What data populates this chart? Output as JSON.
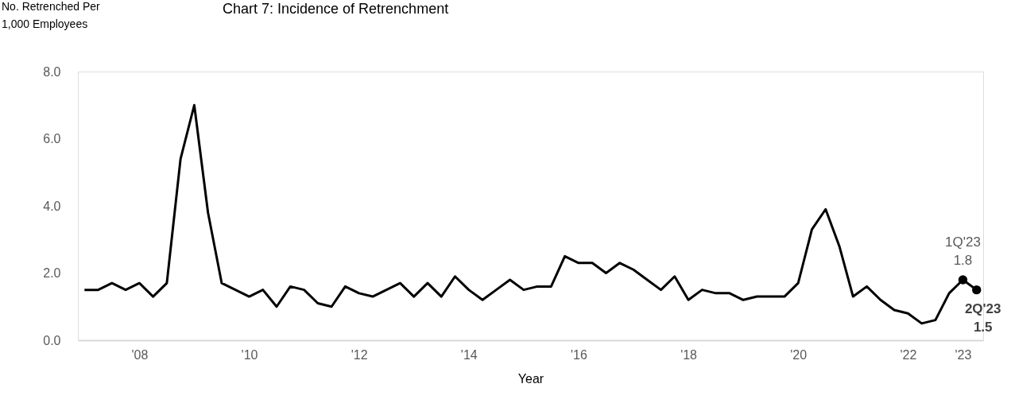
{
  "chart_data": {
    "type": "line",
    "title": "Chart 7: Incidence of Retrenchment",
    "xlabel": "Year",
    "ylabel": "No. Retrenched Per\n1,000 Employees",
    "x": [
      2007.0,
      2007.25,
      2007.5,
      2007.75,
      2008.0,
      2008.25,
      2008.5,
      2008.75,
      2009.0,
      2009.25,
      2009.5,
      2009.75,
      2010.0,
      2010.25,
      2010.5,
      2010.75,
      2011.0,
      2011.25,
      2011.5,
      2011.75,
      2012.0,
      2012.25,
      2012.5,
      2012.75,
      2013.0,
      2013.25,
      2013.5,
      2013.75,
      2014.0,
      2014.25,
      2014.5,
      2014.75,
      2015.0,
      2015.25,
      2015.5,
      2015.75,
      2016.0,
      2016.25,
      2016.5,
      2016.75,
      2017.0,
      2017.25,
      2017.5,
      2017.75,
      2018.0,
      2018.25,
      2018.5,
      2018.75,
      2019.0,
      2019.25,
      2019.5,
      2019.75,
      2020.0,
      2020.25,
      2020.5,
      2020.75,
      2021.0,
      2021.25,
      2021.5,
      2021.75,
      2022.0,
      2022.25,
      2022.5,
      2022.75,
      2023.0,
      2023.25
    ],
    "series": [
      {
        "color": "#000000",
        "values": [
          1.5,
          1.5,
          1.7,
          1.5,
          1.7,
          1.3,
          1.7,
          5.4,
          7.0,
          3.8,
          1.7,
          1.5,
          1.3,
          1.5,
          1.0,
          1.6,
          1.5,
          1.1,
          1.0,
          1.6,
          1.4,
          1.3,
          1.5,
          1.7,
          1.3,
          1.7,
          1.3,
          1.9,
          1.5,
          1.2,
          1.5,
          1.8,
          1.5,
          1.6,
          1.6,
          2.5,
          2.3,
          2.3,
          2.0,
          2.3,
          2.1,
          1.8,
          1.5,
          1.9,
          1.2,
          1.5,
          1.4,
          1.4,
          1.2,
          1.3,
          1.3,
          1.3,
          1.7,
          3.3,
          3.9,
          2.8,
          1.3,
          1.6,
          1.2,
          0.9,
          0.8,
          0.5,
          0.6,
          1.4,
          1.8,
          1.5
        ]
      },
      {
        "type": "scatter",
        "color": "#000000",
        "x": [
          2023.0,
          2023.25
        ],
        "values": [
          1.8,
          1.5
        ]
      }
    ],
    "annotations": [
      {
        "text": "1Q'23\n1.8",
        "x": 2023.0,
        "y": 1.8
      },
      {
        "text": "2Q'23\n1.5",
        "x": 2023.25,
        "y": 1.5
      }
    ],
    "xlim": [
      2006.88,
      2023.37
    ],
    "xticks": [
      {
        "value": 2008,
        "label": "'08"
      },
      {
        "value": 2010,
        "label": "'10"
      },
      {
        "value": 2012,
        "label": "'12"
      },
      {
        "value": 2014,
        "label": "'14"
      },
      {
        "value": 2016,
        "label": "'16"
      },
      {
        "value": 2018,
        "label": "'18"
      },
      {
        "value": 2020,
        "label": "'20"
      },
      {
        "value": 2022,
        "label": "'22"
      },
      {
        "value": 2023,
        "label": "'23"
      }
    ],
    "ylim": [
      0,
      8
    ],
    "yticks": [
      {
        "value": 0,
        "label": "0.0"
      },
      {
        "value": 2,
        "label": "2.0"
      },
      {
        "value": 4,
        "label": "4.0"
      },
      {
        "value": 6,
        "label": "6.0"
      },
      {
        "value": 8,
        "label": "8.0"
      }
    ],
    "grid": false,
    "line_style": "solid"
  }
}
